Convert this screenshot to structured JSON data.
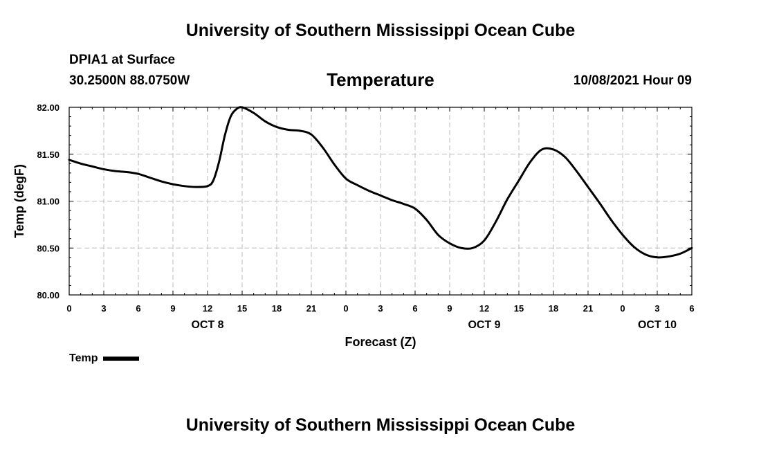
{
  "header": {
    "site_title": "University of Southern Mississippi Ocean Cube",
    "station": "DPIA1 at Surface",
    "coordinates": "30.2500N  88.0750W",
    "date": "10/08/2021 Hour 09"
  },
  "footer": {
    "site_title": "University of Southern Mississippi Ocean Cube"
  },
  "legend": {
    "label": "Temp"
  },
  "chart_data": {
    "type": "line",
    "title": "Temperature",
    "xlabel": "Forecast (Z)",
    "ylabel": "Temp (degF)",
    "xlim": [
      0,
      54
    ],
    "ylim": [
      80.0,
      82.0
    ],
    "grid": true,
    "legend_position": "bottom-left",
    "x_ticks": [
      0,
      3,
      6,
      9,
      12,
      15,
      18,
      21,
      24,
      27,
      30,
      33,
      36,
      39,
      42,
      45,
      48,
      51,
      54
    ],
    "x_tick_labels": [
      "0",
      "3",
      "6",
      "9",
      "12",
      "15",
      "18",
      "21",
      "0",
      "3",
      "6",
      "9",
      "12",
      "15",
      "18",
      "21",
      "0",
      "3",
      "6"
    ],
    "y_ticks": [
      80.0,
      80.5,
      81.0,
      81.5,
      82.0
    ],
    "y_tick_labels": [
      "80.00",
      "80.50",
      "81.00",
      "81.50",
      "82.00"
    ],
    "date_labels": [
      {
        "label": "OCT 8",
        "x": 12
      },
      {
        "label": "OCT 9",
        "x": 36
      },
      {
        "label": "OCT 10",
        "x": 51
      }
    ],
    "series": [
      {
        "name": "Temp",
        "color": "#000000",
        "x": [
          0,
          1,
          2,
          3,
          4,
          5,
          6,
          7,
          8,
          9,
          10,
          11,
          12,
          12.5,
          13,
          13.5,
          14,
          14.5,
          15,
          16,
          17,
          18,
          19,
          20,
          21,
          22,
          23,
          24,
          25,
          26,
          27,
          28,
          29,
          30,
          31,
          32,
          33,
          34,
          35,
          36,
          37,
          38,
          39,
          40,
          41,
          42,
          43,
          44,
          45,
          46,
          47,
          48,
          49,
          50,
          51,
          52,
          53,
          54
        ],
        "values": [
          81.44,
          81.4,
          81.37,
          81.34,
          81.32,
          81.31,
          81.29,
          81.25,
          81.21,
          81.18,
          81.16,
          81.15,
          81.16,
          81.22,
          81.42,
          81.7,
          81.9,
          81.98,
          82.0,
          81.94,
          81.85,
          81.79,
          81.76,
          81.75,
          81.71,
          81.57,
          81.39,
          81.24,
          81.17,
          81.11,
          81.06,
          81.01,
          80.97,
          80.92,
          80.8,
          80.64,
          80.55,
          80.5,
          80.5,
          80.58,
          80.78,
          81.02,
          81.22,
          81.42,
          81.55,
          81.55,
          81.47,
          81.32,
          81.15,
          80.98,
          80.8,
          80.64,
          80.51,
          80.43,
          80.4,
          80.41,
          80.44,
          80.5
        ]
      }
    ]
  }
}
